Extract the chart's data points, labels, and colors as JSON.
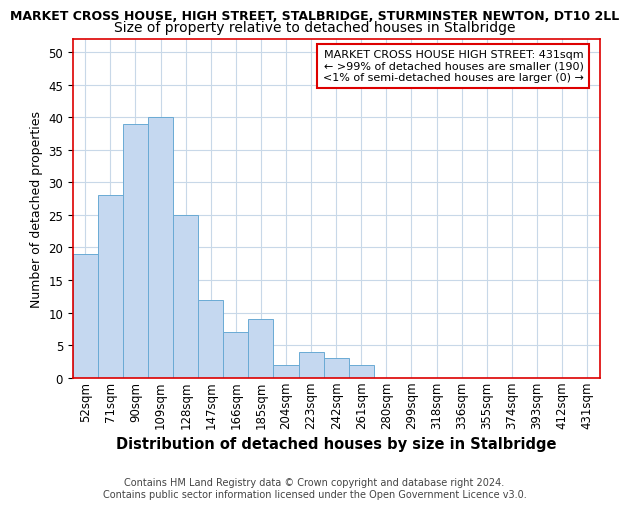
{
  "title_line1": "MARKET CROSS HOUSE, HIGH STREET, STALBRIDGE, STURMINSTER NEWTON, DT10 2LL",
  "title_line2": "Size of property relative to detached houses in Stalbridge",
  "xlabel": "Distribution of detached houses by size in Stalbridge",
  "ylabel": "Number of detached properties",
  "categories": [
    "52sqm",
    "71sqm",
    "90sqm",
    "109sqm",
    "128sqm",
    "147sqm",
    "166sqm",
    "185sqm",
    "204sqm",
    "223sqm",
    "242sqm",
    "261sqm",
    "280sqm",
    "299sqm",
    "318sqm",
    "336sqm",
    "355sqm",
    "374sqm",
    "393sqm",
    "412sqm",
    "431sqm"
  ],
  "values": [
    19,
    28,
    39,
    40,
    25,
    12,
    7,
    9,
    2,
    4,
    3,
    2,
    0,
    0,
    0,
    0,
    0,
    0,
    0,
    0,
    0
  ],
  "bar_color": "#c5d8f0",
  "bar_edge_color": "#6aaad4",
  "annotation_box_text": "MARKET CROSS HOUSE HIGH STREET: 431sqm\n← >99% of detached houses are smaller (190)\n<1% of semi-detached houses are larger (0) →",
  "annotation_box_color": "#dd0000",
  "annotation_box_fill": "#ffffff",
  "grid_color": "#c8d8e8",
  "ylim": [
    0,
    52
  ],
  "yticks": [
    0,
    5,
    10,
    15,
    20,
    25,
    30,
    35,
    40,
    45,
    50
  ],
  "footer_line1": "Contains HM Land Registry data © Crown copyright and database right 2024.",
  "footer_line2": "Contains public sector information licensed under the Open Government Licence v3.0.",
  "background_color": "#ffffff",
  "spine_color": "#dd0000",
  "title1_fontsize": 9.0,
  "title2_fontsize": 10.0,
  "ylabel_fontsize": 9.0,
  "xlabel_fontsize": 10.5,
  "tick_fontsize": 8.5,
  "footer_fontsize": 7.0,
  "annot_fontsize": 8.0
}
